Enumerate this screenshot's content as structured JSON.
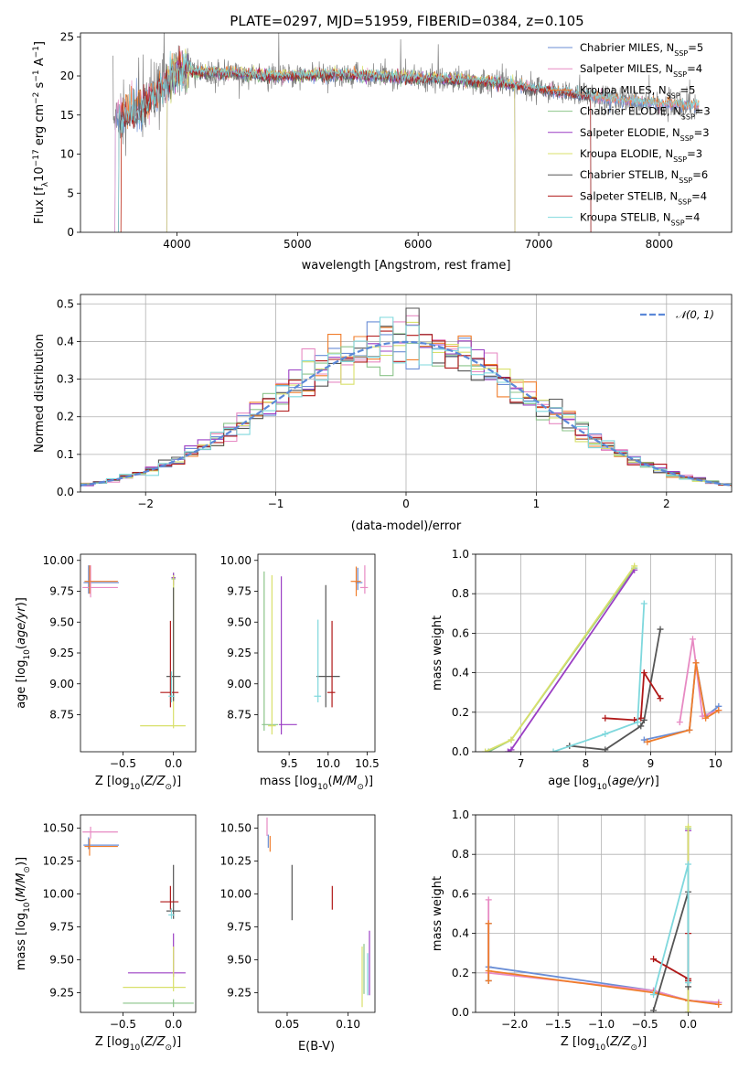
{
  "figure": {
    "title": "PLATE=0297, MJD=51959, FIBERID=0384, z=0.105"
  },
  "chart_data": [
    {
      "id": "spectrum",
      "type": "line",
      "title": "PLATE=0297, MJD=51959, FIBERID=0384, z=0.105",
      "xlabel": "wavelength [Angstrom, rest frame]",
      "ylabel": "Flux [f_λ 10^-17 erg cm^-2 s^-1 A^-1]",
      "xlim": [
        3200,
        8600
      ],
      "ylim": [
        0,
        25.5
      ],
      "xticks": [
        "4000",
        "5000",
        "6000",
        "7000",
        "8000"
      ],
      "yticks": [
        "0",
        "5",
        "10",
        "15",
        "20",
        "25"
      ],
      "legend_position": "top-right",
      "legend": [
        {
          "name": "Chabrier MILES, N",
          "sub": "SSP",
          "suffix": "=5",
          "color": "#6a8ed6"
        },
        {
          "name": "Salpeter MILES, N",
          "sub": "SSP",
          "suffix": "=4",
          "color": "#e78ac3"
        },
        {
          "name": "Kroupa MILES, N",
          "sub": "SSP",
          "suffix": "=5",
          "color": "#f07d2b"
        },
        {
          "name": "Chabrier ELODIE, N",
          "sub": "SSP",
          "suffix": "=3",
          "color": "#8bc48a"
        },
        {
          "name": "Salpeter ELODIE, N",
          "sub": "SSP",
          "suffix": "=3",
          "color": "#9b3fc4"
        },
        {
          "name": "Kroupa ELODIE, N",
          "sub": "SSP",
          "suffix": "=3",
          "color": "#d8e06a"
        },
        {
          "name": "Chabrier STELIB, N",
          "sub": "SSP",
          "suffix": "=6",
          "color": "#555555"
        },
        {
          "name": "Salpeter STELIB, N",
          "sub": "SSP",
          "suffix": "=4",
          "color": "#b01818"
        },
        {
          "name": "Kroupa STELIB, N",
          "sub": "SSP",
          "suffix": "=4",
          "color": "#7fd8dd"
        }
      ],
      "data_series": {
        "name": "data",
        "color": "#808080"
      },
      "continuum_knots": {
        "x": [
          3500,
          3600,
          3700,
          3800,
          3900,
          4000,
          4200,
          4500,
          4800,
          5000,
          5300,
          5600,
          6000,
          6300,
          6600,
          6800,
          7000,
          7300,
          7600,
          8000,
          8300
        ],
        "y": [
          14.8,
          15.2,
          15.8,
          17.5,
          19.0,
          20.8,
          20.5,
          20.3,
          20.0,
          20.0,
          20.2,
          20.0,
          19.7,
          19.5,
          19.2,
          18.8,
          18.3,
          17.7,
          17.0,
          16.4,
          16.2
        ]
      }
    },
    {
      "id": "residuals",
      "type": "line",
      "xlabel": "(data-model)/error",
      "ylabel": "Normed distribution",
      "xlim": [
        -2.5,
        2.5
      ],
      "ylim": [
        0,
        0.525
      ],
      "xticks": [
        "−2",
        "−1",
        "0",
        "1",
        "2"
      ],
      "yticks": [
        "0.0",
        "0.1",
        "0.2",
        "0.3",
        "0.4",
        "0.5"
      ],
      "grid": true,
      "legend_position": "top-right",
      "legend_label": "𝒩(0, 1)",
      "gaussian": {
        "mean": 0,
        "sigma": 1,
        "color": "#5b88d8"
      }
    },
    {
      "id": "age-vs-Z",
      "type": "scatter",
      "xlabel": "Z [log10(Z/Z⊙)]",
      "ylabel": "age  [log10(age/yr)]",
      "xlim": [
        -0.92,
        0.22
      ],
      "ylim": [
        8.45,
        10.05
      ],
      "xticks": [
        "−0.5",
        "0.0"
      ],
      "yticks": [
        "8.75",
        "9.00",
        "9.25",
        "9.50",
        "9.75",
        "10.00"
      ],
      "points": [
        {
          "model": 0,
          "x": -0.84,
          "y": 9.82,
          "xerr": [
            0.05,
            0.3
          ],
          "yerr": [
            0.09,
            0.14
          ]
        },
        {
          "model": 1,
          "x": -0.82,
          "y": 9.78,
          "xerr": [
            0.08,
            0.27
          ],
          "yerr": [
            0.08,
            0.18
          ]
        },
        {
          "model": 2,
          "x": -0.83,
          "y": 9.83,
          "xerr": [
            0.05,
            0.28
          ],
          "yerr": [
            0.1,
            0.13
          ]
        },
        {
          "model": 3,
          "x": 0.0,
          "y": 9.85,
          "xerr": [
            0.02,
            0.02
          ],
          "yerr": [
            0.07,
            0.05
          ]
        },
        {
          "model": 4,
          "x": 0.0,
          "y": 9.86,
          "xerr": [
            0.02,
            0.02
          ],
          "yerr": [
            0.06,
            0.04
          ]
        },
        {
          "model": 5,
          "x": 0.0,
          "y": 8.66,
          "xerr": [
            0.33,
            0.12
          ],
          "yerr": [
            0.02,
            1.22
          ]
        },
        {
          "model": 6,
          "x": 0.0,
          "y": 9.06,
          "xerr": [
            0.07,
            0.07
          ],
          "yerr": [
            0.2,
            0.72
          ]
        },
        {
          "model": 7,
          "x": -0.03,
          "y": 8.93,
          "xerr": [
            0.1,
            0.08
          ],
          "yerr": [
            0.12,
            0.58
          ]
        },
        {
          "model": 8,
          "x": -0.02,
          "y": 8.9,
          "xerr": [
            0.03,
            0.03
          ],
          "yerr": [
            0.05,
            0.2
          ]
        }
      ]
    },
    {
      "id": "age-vs-mass",
      "type": "scatter",
      "xlabel": "mass [log10(M/M⊙)]",
      "ylabel": "",
      "xlim": [
        9.1,
        10.6
      ],
      "ylim": [
        8.45,
        10.05
      ],
      "xticks": [
        "9.5",
        "10.0",
        "10.5"
      ],
      "yticks": [
        "8.75",
        "9.00",
        "9.25",
        "9.50",
        "9.75",
        "10.00"
      ],
      "points": [
        {
          "model": 0,
          "x": 10.38,
          "y": 9.82,
          "xerr": [
            0.03,
            0.06
          ],
          "yerr": [
            0.06,
            0.12
          ]
        },
        {
          "model": 1,
          "x": 10.47,
          "y": 9.78,
          "xerr": [
            0.06,
            0.04
          ],
          "yerr": [
            0.05,
            0.18
          ]
        },
        {
          "model": 2,
          "x": 10.36,
          "y": 9.83,
          "xerr": [
            0.07,
            0.06
          ],
          "yerr": [
            0.12,
            0.12
          ]
        },
        {
          "model": 3,
          "x": 9.18,
          "y": 8.67,
          "xerr": [
            0.03,
            0.18
          ],
          "yerr": [
            0.05,
            1.24
          ]
        },
        {
          "model": 4,
          "x": 9.4,
          "y": 8.67,
          "xerr": [
            0.03,
            0.2
          ],
          "yerr": [
            0.08,
            1.2
          ]
        },
        {
          "model": 5,
          "x": 9.28,
          "y": 8.66,
          "xerr": [
            0.05,
            0.05
          ],
          "yerr": [
            0.07,
            1.22
          ]
        },
        {
          "model": 6,
          "x": 9.97,
          "y": 9.06,
          "xerr": [
            0.12,
            0.18
          ],
          "yerr": [
            0.25,
            0.74
          ]
        },
        {
          "model": 7,
          "x": 10.05,
          "y": 8.93,
          "xerr": [
            0.06,
            0.04
          ],
          "yerr": [
            0.12,
            0.58
          ]
        },
        {
          "model": 8,
          "x": 9.87,
          "y": 8.9,
          "xerr": [
            0.05,
            0.04
          ],
          "yerr": [
            0.05,
            0.62
          ]
        }
      ]
    },
    {
      "id": "weight-vs-age",
      "type": "line",
      "xlabel": "age  [log10(age/yr)]",
      "ylabel": "mass weight",
      "xlim": [
        6.3,
        10.25
      ],
      "ylim": [
        0,
        1.0
      ],
      "xticks": [
        "7",
        "8",
        "9",
        "10"
      ],
      "yticks": [
        "0.0",
        "0.2",
        "0.4",
        "0.6",
        "0.8",
        "1.0"
      ],
      "grid": true,
      "series": [
        {
          "model": 0,
          "x": [
            8.9,
            9.6,
            9.7,
            9.85,
            10.05
          ],
          "y": [
            0.06,
            0.11,
            0.45,
            0.18,
            0.23
          ]
        },
        {
          "model": 1,
          "x": [
            9.45,
            9.65,
            9.8,
            10.05
          ],
          "y": [
            0.15,
            0.57,
            0.18,
            0.21
          ]
        },
        {
          "model": 2,
          "x": [
            8.95,
            9.6,
            9.7,
            9.85,
            10.05
          ],
          "y": [
            0.05,
            0.11,
            0.45,
            0.17,
            0.21
          ]
        },
        {
          "model": 3,
          "x": [
            6.5,
            6.85,
            8.75
          ],
          "y": [
            0.0,
            0.06,
            0.93
          ]
        },
        {
          "model": 4,
          "x": [
            6.8,
            6.85,
            8.75
          ],
          "y": [
            0.0,
            0.01,
            0.92
          ]
        },
        {
          "model": 5,
          "x": [
            6.45,
            6.85,
            8.75
          ],
          "y": [
            0.0,
            0.06,
            0.94
          ]
        },
        {
          "model": 6,
          "x": [
            7.75,
            8.3,
            8.85,
            8.9,
            9.15
          ],
          "y": [
            0.03,
            0.01,
            0.13,
            0.16,
            0.62
          ]
        },
        {
          "model": 7,
          "x": [
            8.3,
            8.75,
            8.85,
            8.9,
            9.15
          ],
          "y": [
            0.17,
            0.16,
            0.17,
            0.4,
            0.27
          ]
        },
        {
          "model": 8,
          "x": [
            7.5,
            8.3,
            8.8,
            8.9
          ],
          "y": [
            0.0,
            0.09,
            0.15,
            0.75
          ]
        }
      ]
    },
    {
      "id": "mass-vs-Z",
      "type": "scatter",
      "xlabel": "Z [log10(Z/Z⊙)]",
      "ylabel": "mass [log10(M/M⊙)]",
      "xlim": [
        -0.92,
        0.22
      ],
      "ylim": [
        9.1,
        10.6
      ],
      "xticks": [
        "−0.5",
        "0.0"
      ],
      "yticks": [
        "9.25",
        "9.50",
        "9.75",
        "10.00",
        "10.25",
        "10.50"
      ],
      "points": [
        {
          "model": 0,
          "x": -0.84,
          "y": 10.37,
          "xerr": [
            0.05,
            0.3
          ],
          "yerr": [
            0.03,
            0.06
          ]
        },
        {
          "model": 1,
          "x": -0.82,
          "y": 10.47,
          "xerr": [
            0.08,
            0.27
          ],
          "yerr": [
            0.05,
            0.04
          ]
        },
        {
          "model": 2,
          "x": -0.83,
          "y": 10.36,
          "xerr": [
            0.05,
            0.28
          ],
          "yerr": [
            0.07,
            0.06
          ]
        },
        {
          "model": 3,
          "x": 0.0,
          "y": 9.17,
          "xerr": [
            0.5,
            0.2
          ],
          "yerr": [
            0.03,
            0.03
          ]
        },
        {
          "model": 4,
          "x": 0.0,
          "y": 9.4,
          "xerr": [
            0.45,
            0.12
          ],
          "yerr": [
            0.03,
            0.3
          ]
        },
        {
          "model": 5,
          "x": 0.0,
          "y": 9.29,
          "xerr": [
            0.5,
            0.12
          ],
          "yerr": [
            0.03,
            0.31
          ]
        },
        {
          "model": 6,
          "x": 0.0,
          "y": 9.87,
          "xerr": [
            0.07,
            0.07
          ],
          "yerr": [
            0.06,
            0.35
          ]
        },
        {
          "model": 7,
          "x": -0.03,
          "y": 9.94,
          "xerr": [
            0.1,
            0.08
          ],
          "yerr": [
            0.06,
            0.12
          ]
        },
        {
          "model": 8,
          "x": -0.02,
          "y": 9.84,
          "xerr": [
            0.03,
            0.03
          ],
          "yerr": [
            0.03,
            0.05
          ]
        }
      ]
    },
    {
      "id": "mass-vs-ebv",
      "type": "scatter",
      "xlabel": "E(B-V)",
      "ylabel": "",
      "xlim": [
        0.026,
        0.122
      ],
      "ylim": [
        9.1,
        10.6
      ],
      "xticks": [
        "0.05",
        "0.10"
      ],
      "yticks": [
        "9.25",
        "9.50",
        "9.75",
        "10.00",
        "10.25",
        "10.50"
      ],
      "points": [
        {
          "model": 0,
          "x": 0.0345,
          "y": 10.4,
          "xerr": [
            0,
            0
          ],
          "yerr": [
            0.05,
            0.05
          ]
        },
        {
          "model": 1,
          "x": 0.0335,
          "y": 10.52,
          "xerr": [
            0,
            0
          ],
          "yerr": [
            0.08,
            0.06
          ]
        },
        {
          "model": 2,
          "x": 0.036,
          "y": 10.38,
          "xerr": [
            0,
            0
          ],
          "yerr": [
            0.06,
            0.06
          ]
        },
        {
          "model": 3,
          "x": 0.113,
          "y": 9.38,
          "xerr": [
            0,
            0
          ],
          "yerr": [
            0.14,
            0.24
          ]
        },
        {
          "model": 4,
          "x": 0.1175,
          "y": 9.47,
          "xerr": [
            0,
            0
          ],
          "yerr": [
            0.24,
            0.25
          ]
        },
        {
          "model": 5,
          "x": 0.1115,
          "y": 9.3,
          "xerr": [
            0,
            0
          ],
          "yerr": [
            0.16,
            0.3
          ]
        },
        {
          "model": 6,
          "x": 0.054,
          "y": 10.0,
          "xerr": [
            0,
            0
          ],
          "yerr": [
            0.2,
            0.22
          ]
        },
        {
          "model": 7,
          "x": 0.087,
          "y": 9.94,
          "xerr": [
            0,
            0
          ],
          "yerr": [
            0.06,
            0.12
          ]
        },
        {
          "model": 8,
          "x": 0.116,
          "y": 9.35,
          "xerr": [
            0,
            0
          ],
          "yerr": [
            0.12,
            0.2
          ]
        }
      ]
    },
    {
      "id": "weight-vs-Z",
      "type": "line",
      "xlabel": "Z [log10(Z/Z⊙)]",
      "ylabel": "mass weight",
      "xlim": [
        -2.45,
        0.5
      ],
      "ylim": [
        0,
        1.0
      ],
      "xticks": [
        "−2.0",
        "−1.5",
        "−1.0",
        "−0.5",
        "0.0"
      ],
      "yticks": [
        "0.0",
        "0.2",
        "0.4",
        "0.6",
        "0.8",
        "1.0"
      ],
      "grid": true,
      "series": [
        {
          "model": 0,
          "x": [
            -2.3,
            -2.3,
            -2.3,
            -0.4,
            0.0,
            0.35
          ],
          "y": [
            0.16,
            0.45,
            0.23,
            0.11,
            0.06,
            0.05
          ]
        },
        {
          "model": 1,
          "x": [
            -2.3,
            -2.3,
            -0.4,
            0.0,
            0.35
          ],
          "y": [
            0.57,
            0.2,
            0.11,
            0.06,
            0.05
          ]
        },
        {
          "model": 2,
          "x": [
            -2.3,
            -2.3,
            -2.3,
            -0.4,
            0.0,
            0.35
          ],
          "y": [
            0.16,
            0.45,
            0.21,
            0.1,
            0.06,
            0.04
          ]
        },
        {
          "model": 3,
          "x": [
            0.0,
            0.0
          ],
          "y": [
            0.0,
            0.93
          ]
        },
        {
          "model": 4,
          "x": [
            0.0,
            0.0
          ],
          "y": [
            0.0,
            0.92
          ]
        },
        {
          "model": 5,
          "x": [
            0.0,
            0.0
          ],
          "y": [
            0.0,
            0.94
          ]
        },
        {
          "model": 6,
          "x": [
            -0.4,
            0.0,
            0.0,
            0.0
          ],
          "y": [
            0.01,
            0.61,
            0.16,
            0.13
          ]
        },
        {
          "model": 7,
          "x": [
            -0.4,
            0.0,
            0.0,
            0.0
          ],
          "y": [
            0.27,
            0.17,
            0.4,
            0.16
          ]
        },
        {
          "model": 8,
          "x": [
            -0.4,
            0.0,
            0.0
          ],
          "y": [
            0.09,
            0.75,
            0.15
          ]
        }
      ]
    }
  ]
}
